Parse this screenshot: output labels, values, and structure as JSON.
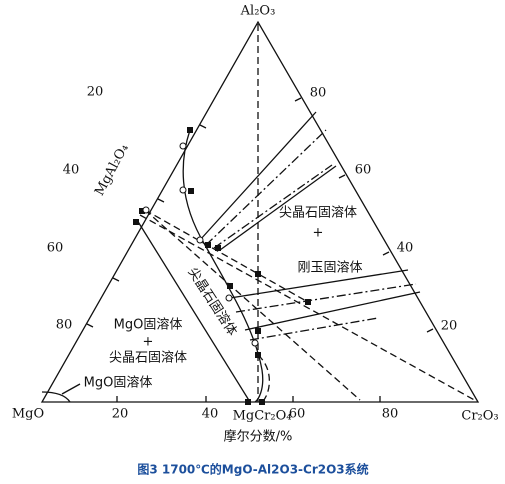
{
  "vertices": {
    "top": "Al₂O₃",
    "left": "MgO",
    "right": "Cr₂O₃",
    "bottom_mid": "MgCr₂O₄",
    "left_mid": "MgAl₂O₄"
  },
  "axis_label": "摩尔分数/%",
  "ticks": {
    "left": [
      "20",
      "40",
      "60",
      "80"
    ],
    "right": [
      "80",
      "60",
      "40",
      "20"
    ],
    "bottom": [
      "20",
      "40",
      "60",
      "80"
    ]
  },
  "regions": {
    "upper": [
      "尖晶石固溶体",
      "+",
      "刚玉固溶体"
    ],
    "lower": [
      "MgO固溶体",
      "+",
      "尖晶石固溶体"
    ],
    "corner": "MgO固溶体",
    "curve": "尖晶石固溶体"
  },
  "caption": "图3 1700℃的MgO-Al2O3-Cr2O3系统"
}
